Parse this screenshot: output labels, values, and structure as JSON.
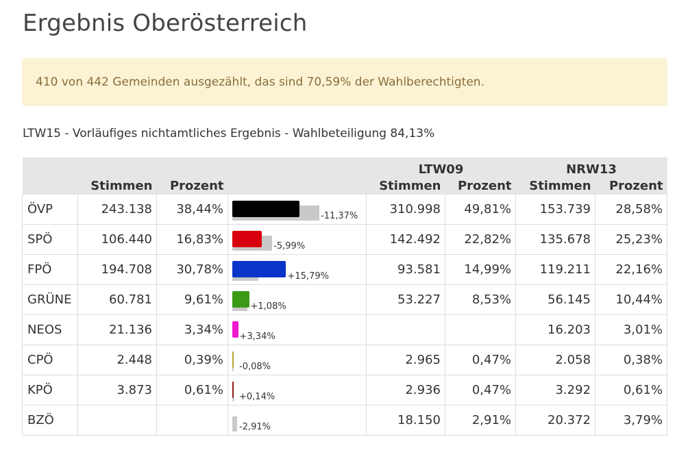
{
  "page_title": "Ergebnis Oberösterreich",
  "notice": "410 von 442 Gemeinden ausgezählt, das sind 70,59% der Wahlberechtigten.",
  "subtitle": "LTW15 - Vorläufiges nichtamtliches Ergebnis - Wahlbeteiligung 84,13%",
  "table": {
    "group_headers": {
      "ltw09": "LTW09",
      "nrw13": "NRW13"
    },
    "col_headers": {
      "stimmen": "Stimmen",
      "prozent": "Prozent",
      "ltw09_stimmen": "Stimmen",
      "ltw09_prozent": "Prozent",
      "nrw13_stimmen": "Stimmen",
      "nrw13_prozent": "Prozent"
    },
    "rows": [
      {
        "party": "ÖVP",
        "stimmen": "243.138",
        "prozent": "38,44%",
        "current_pct": 38.44,
        "previous_pct": 49.81,
        "diff": "-11,37%",
        "color": "#000000",
        "ltw09_stimmen": "310.998",
        "ltw09_prozent": "49,81%",
        "nrw13_stimmen": "153.739",
        "nrw13_prozent": "28,58%"
      },
      {
        "party": "SPÖ",
        "stimmen": "106.440",
        "prozent": "16,83%",
        "current_pct": 16.83,
        "previous_pct": 22.82,
        "diff": "-5,99%",
        "color": "#d9000d",
        "ltw09_stimmen": "142.492",
        "ltw09_prozent": "22,82%",
        "nrw13_stimmen": "135.678",
        "nrw13_prozent": "25,23%"
      },
      {
        "party": "FPÖ",
        "stimmen": "194.708",
        "prozent": "30,78%",
        "current_pct": 30.78,
        "previous_pct": 14.99,
        "diff": "+15,79%",
        "color": "#0b34c8",
        "ltw09_stimmen": "93.581",
        "ltw09_prozent": "14,99%",
        "nrw13_stimmen": "119.211",
        "nrw13_prozent": "22,16%"
      },
      {
        "party": "GRÜNE",
        "stimmen": "60.781",
        "prozent": "9,61%",
        "current_pct": 9.61,
        "previous_pct": 8.53,
        "diff": "+1,08%",
        "color": "#3a9a15",
        "ltw09_stimmen": "53.227",
        "ltw09_prozent": "8,53%",
        "nrw13_stimmen": "56.145",
        "nrw13_prozent": "10,44%"
      },
      {
        "party": "NEOS",
        "stimmen": "21.136",
        "prozent": "3,34%",
        "current_pct": 3.34,
        "previous_pct": 0,
        "diff": "+3,34%",
        "color": "#f019d2",
        "ltw09_stimmen": "",
        "ltw09_prozent": "",
        "nrw13_stimmen": "16.203",
        "nrw13_prozent": "3,01%"
      },
      {
        "party": "CPÖ",
        "stimmen": "2.448",
        "prozent": "0,39%",
        "current_pct": 0.39,
        "previous_pct": 0.47,
        "diff": "-0,08%",
        "color": "#b5a82a",
        "ltw09_stimmen": "2.965",
        "ltw09_prozent": "0,47%",
        "nrw13_stimmen": "2.058",
        "nrw13_prozent": "0,38%"
      },
      {
        "party": "KPÖ",
        "stimmen": "3.873",
        "prozent": "0,61%",
        "current_pct": 0.61,
        "previous_pct": 0.47,
        "diff": "+0,14%",
        "color": "#8b1a1a",
        "ltw09_stimmen": "2.936",
        "ltw09_prozent": "0,47%",
        "nrw13_stimmen": "3.292",
        "nrw13_prozent": "0,61%"
      },
      {
        "party": "BZÖ",
        "stimmen": "",
        "prozent": "",
        "current_pct": 0,
        "previous_pct": 2.91,
        "diff": "-2,91%",
        "color": "#f08000",
        "ltw09_stimmen": "18.150",
        "ltw09_prozent": "2,91%",
        "nrw13_stimmen": "20.372",
        "nrw13_prozent": "3,79%"
      }
    ]
  }
}
